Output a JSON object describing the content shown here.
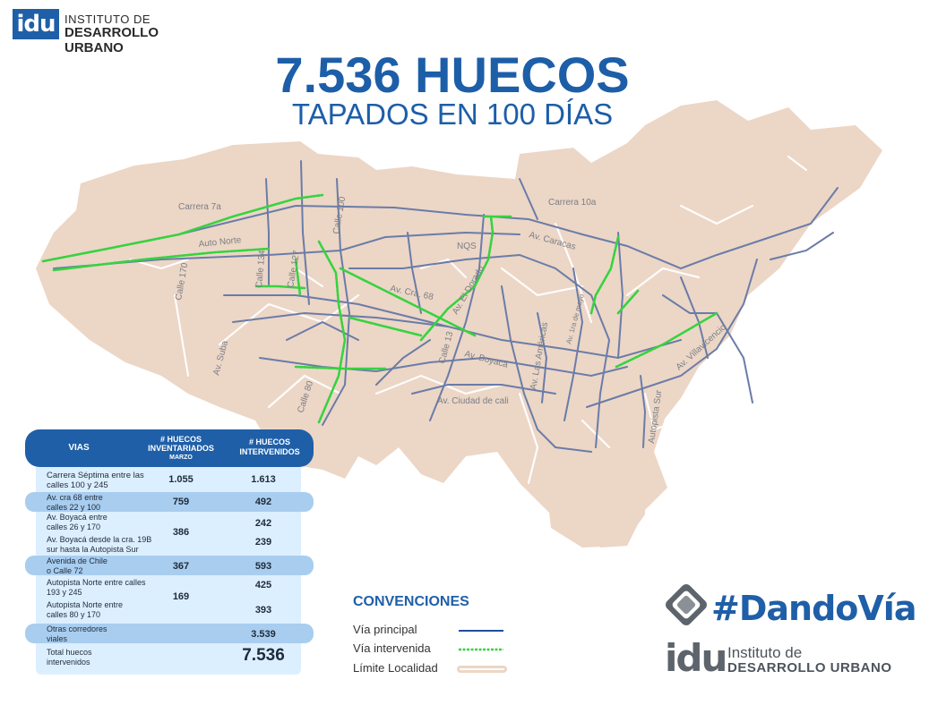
{
  "header": {
    "logo_abbr": "idu",
    "logo_line1": "INSTITUTO DE",
    "logo_line2": "DESARROLLO URBANO",
    "title": "7.536 HUECOS",
    "subtitle": "TAPADOS EN 100 DÍAS"
  },
  "map": {
    "labels": [
      "Carrera 7a",
      "Auto Norte",
      "Calle 100",
      "Calle 170",
      "Calle 134",
      "Calle 127",
      "NQS",
      "Carrera 10a",
      "Av. Caracas",
      "Av. Cra. 68",
      "Av. El Dorado",
      "Av. Suba",
      "Calle 13",
      "Av. Boyacá",
      "Av. Las Américas",
      "Av. 1ra de mayo",
      "Av. Villavicencio",
      "Autopista Sur",
      "Av. Ciudad de cali",
      "Calle 80"
    ],
    "colors": {
      "land": "#ecd6c6",
      "main_road": "#6a7ca8",
      "intervened": "#36d33f",
      "limit": "#ffffff"
    }
  },
  "table": {
    "headers": {
      "vias": "VIAS",
      "inventariados": "# HUECOS INVENTARIADOS",
      "inventariados_sub": "MARZO",
      "intervenidos": "# HUECOS INTERVENIDOS"
    },
    "rows": [
      {
        "via": "Carrera Séptima entre las calles 100 y 245",
        "inventariados": "1.055",
        "intervenidos": "1.613"
      },
      {
        "via": "Av. cra 68 entre calles 22 y 100",
        "inventariados": "759",
        "intervenidos": "492"
      },
      {
        "via": "Av. Boyacá entre calles 26 y 170",
        "inventariados": "386",
        "intervenidos": "242"
      },
      {
        "via": "Av. Boyacá desde la cra. 19B sur hasta la Autopista Sur",
        "inventariados": "",
        "intervenidos": "239"
      },
      {
        "via": "Avenida de Chile o Calle 72",
        "inventariados": "367",
        "intervenidos": "593"
      },
      {
        "via": "Autopista Norte entre calles 193 y 245",
        "inventariados": "169",
        "intervenidos": "425"
      },
      {
        "via": "Autopista Norte entre calles 80 y 170",
        "inventariados": "",
        "intervenidos": "393"
      },
      {
        "via": "Otras corredores viales",
        "inventariados": "",
        "intervenidos": "3.539"
      },
      {
        "via": "Total huecos intervenidos",
        "inventariados": "",
        "intervenidos": "7.536"
      }
    ]
  },
  "legend": {
    "title": "CONVENCIONES",
    "items": [
      {
        "label": "Vía principal",
        "color": "#1f4e9a"
      },
      {
        "label": "Vía intervenida",
        "color": "#36d33f"
      },
      {
        "label": "Límite Localidad",
        "color": "#ecd6c6"
      }
    ]
  },
  "campaign": {
    "hashtag_a": "#Dando",
    "hashtag_b": "Vía"
  },
  "footer_logo": {
    "abbr": "idu",
    "line1": "Instituto de",
    "line2": "DESARROLLO URBANO"
  }
}
